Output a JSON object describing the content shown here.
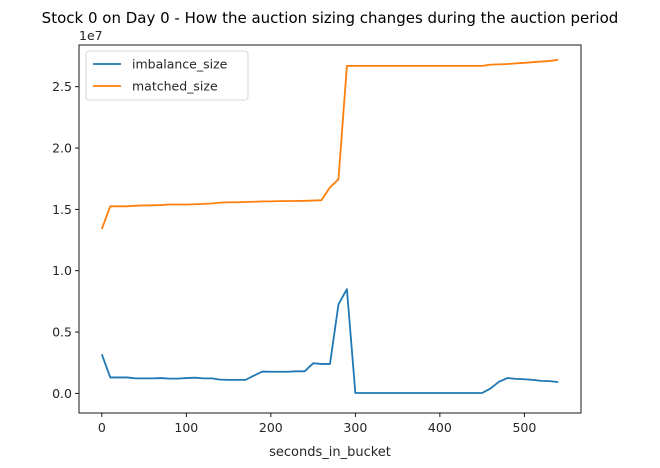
{
  "chart_data": {
    "type": "line",
    "title": "Stock 0 on Day 0 - How the auction sizing changes during the auction period",
    "xlabel": "seconds_in_bucket",
    "ylabel": "",
    "y_offset_label": "1e7",
    "xlim": [
      -27,
      567
    ],
    "ylim": [
      -0.16,
      2.84
    ],
    "x_ticks": [
      0,
      100,
      200,
      300,
      400,
      500
    ],
    "y_ticks": [
      0.0,
      0.5,
      1.0,
      1.5,
      2.0,
      2.5
    ],
    "y_tick_labels": [
      "0.0",
      "0.5",
      "1.0",
      "1.5",
      "2.0",
      "2.5"
    ],
    "legend_position": "upper left",
    "x": [
      0,
      10,
      20,
      30,
      40,
      50,
      60,
      70,
      80,
      90,
      100,
      110,
      120,
      130,
      140,
      150,
      160,
      170,
      180,
      190,
      200,
      210,
      220,
      230,
      240,
      250,
      260,
      270,
      280,
      290,
      300,
      310,
      320,
      330,
      340,
      350,
      360,
      370,
      380,
      390,
      400,
      410,
      420,
      430,
      440,
      450,
      460,
      470,
      480,
      490,
      500,
      510,
      520,
      530,
      540
    ],
    "series": [
      {
        "name": "imbalance_size",
        "color": "#1f77b4",
        "values": [
          0.318,
          0.13,
          0.13,
          0.13,
          0.122,
          0.122,
          0.122,
          0.125,
          0.12,
          0.12,
          0.125,
          0.128,
          0.122,
          0.122,
          0.112,
          0.11,
          0.11,
          0.11,
          0.145,
          0.178,
          0.176,
          0.176,
          0.176,
          0.18,
          0.18,
          0.245,
          0.24,
          0.24,
          0.725,
          0.85,
          0.003,
          0.003,
          0.003,
          0.003,
          0.003,
          0.003,
          0.003,
          0.003,
          0.003,
          0.003,
          0.003,
          0.003,
          0.003,
          0.003,
          0.003,
          0.003,
          0.04,
          0.095,
          0.125,
          0.118,
          0.115,
          0.11,
          0.102,
          0.1,
          0.092
        ]
      },
      {
        "name": "matched_size",
        "color": "#ff7f0e",
        "values": [
          1.34,
          1.525,
          1.525,
          1.525,
          1.53,
          1.532,
          1.533,
          1.535,
          1.54,
          1.54,
          1.54,
          1.542,
          1.545,
          1.548,
          1.555,
          1.558,
          1.558,
          1.56,
          1.562,
          1.565,
          1.565,
          1.567,
          1.568,
          1.568,
          1.57,
          1.572,
          1.575,
          1.68,
          1.745,
          2.67,
          2.67,
          2.67,
          2.67,
          2.67,
          2.67,
          2.67,
          2.67,
          2.67,
          2.67,
          2.67,
          2.67,
          2.67,
          2.67,
          2.67,
          2.67,
          2.67,
          2.68,
          2.682,
          2.685,
          2.69,
          2.695,
          2.7,
          2.705,
          2.71,
          2.72
        ]
      }
    ]
  }
}
